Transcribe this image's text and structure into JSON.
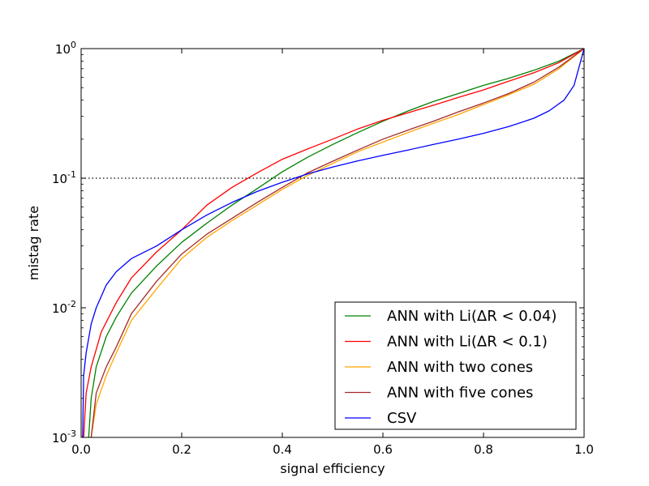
{
  "chart_data": {
    "type": "line",
    "xlabel": "signal efficiency",
    "ylabel": "mistag rate",
    "xlim": [
      0.0,
      1.0
    ],
    "ylim": [
      0.001,
      1.0
    ],
    "yscale": "log",
    "grid": false,
    "legend_position": "bottom-right",
    "x_ticks": [
      0.0,
      0.2,
      0.4,
      0.6,
      0.8,
      1.0
    ],
    "x_tick_labels": [
      "0.0",
      "0.2",
      "0.4",
      "0.6",
      "0.8",
      "1.0"
    ],
    "y_ticks": [
      {
        "value": 0.001,
        "base": "10",
        "exp": "-3"
      },
      {
        "value": 0.01,
        "base": "10",
        "exp": "-2"
      },
      {
        "value": 0.1,
        "base": "10",
        "exp": "-1"
      },
      {
        "value": 1.0,
        "base": "10",
        "exp": "0"
      }
    ],
    "reference_line": {
      "y": 0.1,
      "style": "dotted",
      "color": "#000000"
    },
    "series": [
      {
        "name": "ANN with Li(ΔR < 0.04)",
        "color": "#008000",
        "x": [
          0.015,
          0.02,
          0.03,
          0.05,
          0.07,
          0.1,
          0.15,
          0.2,
          0.25,
          0.3,
          0.35,
          0.4,
          0.45,
          0.5,
          0.55,
          0.6,
          0.65,
          0.7,
          0.75,
          0.8,
          0.85,
          0.9,
          0.95,
          1.0
        ],
        "y": [
          0.001,
          0.002,
          0.0035,
          0.006,
          0.0085,
          0.013,
          0.021,
          0.032,
          0.045,
          0.062,
          0.083,
          0.112,
          0.145,
          0.182,
          0.225,
          0.275,
          0.33,
          0.39,
          0.45,
          0.52,
          0.59,
          0.68,
          0.8,
          1.0
        ]
      },
      {
        "name": "ANN with Li(ΔR < 0.1)",
        "color": "#ff0000",
        "x": [
          0.005,
          0.01,
          0.02,
          0.04,
          0.07,
          0.1,
          0.15,
          0.2,
          0.25,
          0.3,
          0.35,
          0.4,
          0.45,
          0.5,
          0.55,
          0.6,
          0.65,
          0.7,
          0.75,
          0.8,
          0.85,
          0.9,
          0.95,
          1.0
        ],
        "y": [
          0.001,
          0.0022,
          0.0035,
          0.0065,
          0.011,
          0.017,
          0.027,
          0.04,
          0.062,
          0.085,
          0.11,
          0.14,
          0.168,
          0.2,
          0.24,
          0.28,
          0.32,
          0.365,
          0.42,
          0.48,
          0.56,
          0.65,
          0.78,
          1.0
        ]
      },
      {
        "name": "ANN with two cones",
        "color": "#ffa500",
        "x": [
          0.02,
          0.03,
          0.05,
          0.07,
          0.1,
          0.15,
          0.2,
          0.25,
          0.3,
          0.35,
          0.4,
          0.45,
          0.5,
          0.55,
          0.6,
          0.65,
          0.7,
          0.75,
          0.8,
          0.85,
          0.9,
          0.95,
          1.0
        ],
        "y": [
          0.001,
          0.0018,
          0.003,
          0.0045,
          0.008,
          0.014,
          0.024,
          0.035,
          0.047,
          0.062,
          0.082,
          0.105,
          0.13,
          0.16,
          0.19,
          0.225,
          0.265,
          0.31,
          0.37,
          0.44,
          0.53,
          0.7,
          1.0
        ]
      },
      {
        "name": "ANN with five cones",
        "color": "#a52a2a",
        "x": [
          0.02,
          0.03,
          0.05,
          0.07,
          0.1,
          0.15,
          0.2,
          0.25,
          0.3,
          0.35,
          0.4,
          0.45,
          0.5,
          0.55,
          0.6,
          0.65,
          0.7,
          0.75,
          0.8,
          0.85,
          0.9,
          0.95,
          1.0
        ],
        "y": [
          0.001,
          0.0022,
          0.0035,
          0.005,
          0.009,
          0.016,
          0.026,
          0.037,
          0.049,
          0.065,
          0.085,
          0.11,
          0.135,
          0.165,
          0.2,
          0.235,
          0.275,
          0.325,
          0.38,
          0.45,
          0.55,
          0.72,
          1.0
        ]
      },
      {
        "name": "CSV",
        "color": "#0000ff",
        "x": [
          0.003,
          0.005,
          0.01,
          0.02,
          0.03,
          0.05,
          0.07,
          0.1,
          0.15,
          0.2,
          0.25,
          0.3,
          0.35,
          0.4,
          0.45,
          0.5,
          0.55,
          0.6,
          0.65,
          0.7,
          0.75,
          0.8,
          0.85,
          0.9,
          0.93,
          0.96,
          0.98,
          1.0
        ],
        "y": [
          0.001,
          0.003,
          0.0045,
          0.0075,
          0.01,
          0.015,
          0.019,
          0.024,
          0.03,
          0.04,
          0.052,
          0.065,
          0.079,
          0.093,
          0.108,
          0.122,
          0.136,
          0.15,
          0.165,
          0.182,
          0.2,
          0.222,
          0.25,
          0.29,
          0.33,
          0.4,
          0.52,
          1.0
        ]
      }
    ]
  }
}
